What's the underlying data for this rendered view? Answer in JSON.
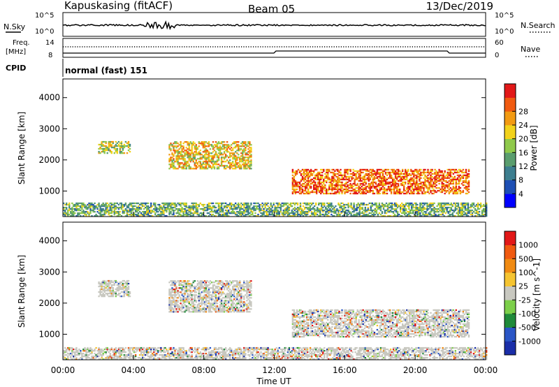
{
  "header": {
    "station": "Kapuskasing (fitACF)",
    "beam": "Beam 05",
    "date": "13/Dec/2019"
  },
  "panels": {
    "nsky": {
      "label": "N.Sky",
      "tick_top": "10^5",
      "tick_bottom": "10^0"
    },
    "nsearch": {
      "label": "N.Search",
      "tick_top": "10^5",
      "tick_bottom": "10^0"
    },
    "freq": {
      "label_line1": "Freq.",
      "label_line2": "[MHz]",
      "tick_top": "14",
      "tick_bottom": "8"
    },
    "nave": {
      "label": "Nave",
      "tick_top": "60",
      "tick_bottom": "0"
    },
    "cpid": {
      "label": "CPID",
      "value": "normal (fast) 151"
    }
  },
  "chart_data": [
    {
      "type": "heatmap",
      "title": "",
      "xlabel": "",
      "ylabel": "Slant Range [km]",
      "x_ticks": [
        "00:00",
        "04:00",
        "08:00",
        "12:00",
        "16:00",
        "20:00",
        "00:00"
      ],
      "y_ticks": [
        1000,
        2000,
        3000,
        4000
      ],
      "ylim": [
        180,
        4600
      ],
      "colorbar": {
        "label": "Power [dB]",
        "ticks": [
          "4",
          "8",
          "12",
          "16",
          "20",
          "24",
          "28"
        ],
        "colors": [
          "#0000ff",
          "#1e4fb4",
          "#3d7e8f",
          "#5a9d6e",
          "#8fc94b",
          "#f2d21b",
          "#f29a12",
          "#f05a10",
          "#e21818"
        ]
      },
      "regions": [
        {
          "t_start": 2.0,
          "t_end": 3.8,
          "range_min": 2200,
          "range_max": 2600,
          "level": 0.55
        },
        {
          "t_start": 6.0,
          "t_end": 10.7,
          "range_min": 1700,
          "range_max": 2600,
          "level": 0.65
        },
        {
          "t_start": 13.0,
          "t_end": 23.0,
          "range_min": 900,
          "range_max": 1700,
          "level": 0.85
        },
        {
          "t_start": 0.0,
          "t_end": 24.0,
          "range_min": 180,
          "range_max": 600,
          "level": 0.4
        }
      ]
    },
    {
      "type": "heatmap",
      "title": "",
      "xlabel": "Time UT",
      "ylabel": "Slant Range [km]",
      "x_ticks": [
        "00:00",
        "04:00",
        "08:00",
        "12:00",
        "16:00",
        "20:00",
        "00:00"
      ],
      "y_ticks": [
        1000,
        2000,
        3000,
        4000
      ],
      "ylim": [
        180,
        4600
      ],
      "colorbar": {
        "label": "Velocity [m s^-1]",
        "ticks": [
          "1000",
          "500",
          "100",
          "25",
          "-25",
          "-100",
          "-500",
          "-1000"
        ],
        "colors": [
          "#1a2ea8",
          "#2a56c6",
          "#1f8a3a",
          "#7ccf4a",
          "#c8c8c0",
          "#f5c431",
          "#f08a12",
          "#f05a10",
          "#e21818"
        ]
      },
      "regions": [
        {
          "t_start": 2.0,
          "t_end": 3.8,
          "range_min": 2200,
          "range_max": 2700,
          "level": 0.5
        },
        {
          "t_start": 6.0,
          "t_end": 10.7,
          "range_min": 1700,
          "range_max": 2700,
          "level": 0.5
        },
        {
          "t_start": 13.0,
          "t_end": 23.0,
          "range_min": 900,
          "range_max": 1800,
          "level": 0.5
        },
        {
          "t_start": 0.0,
          "t_end": 24.0,
          "range_min": 180,
          "range_max": 550,
          "level": 0.35
        }
      ]
    }
  ]
}
